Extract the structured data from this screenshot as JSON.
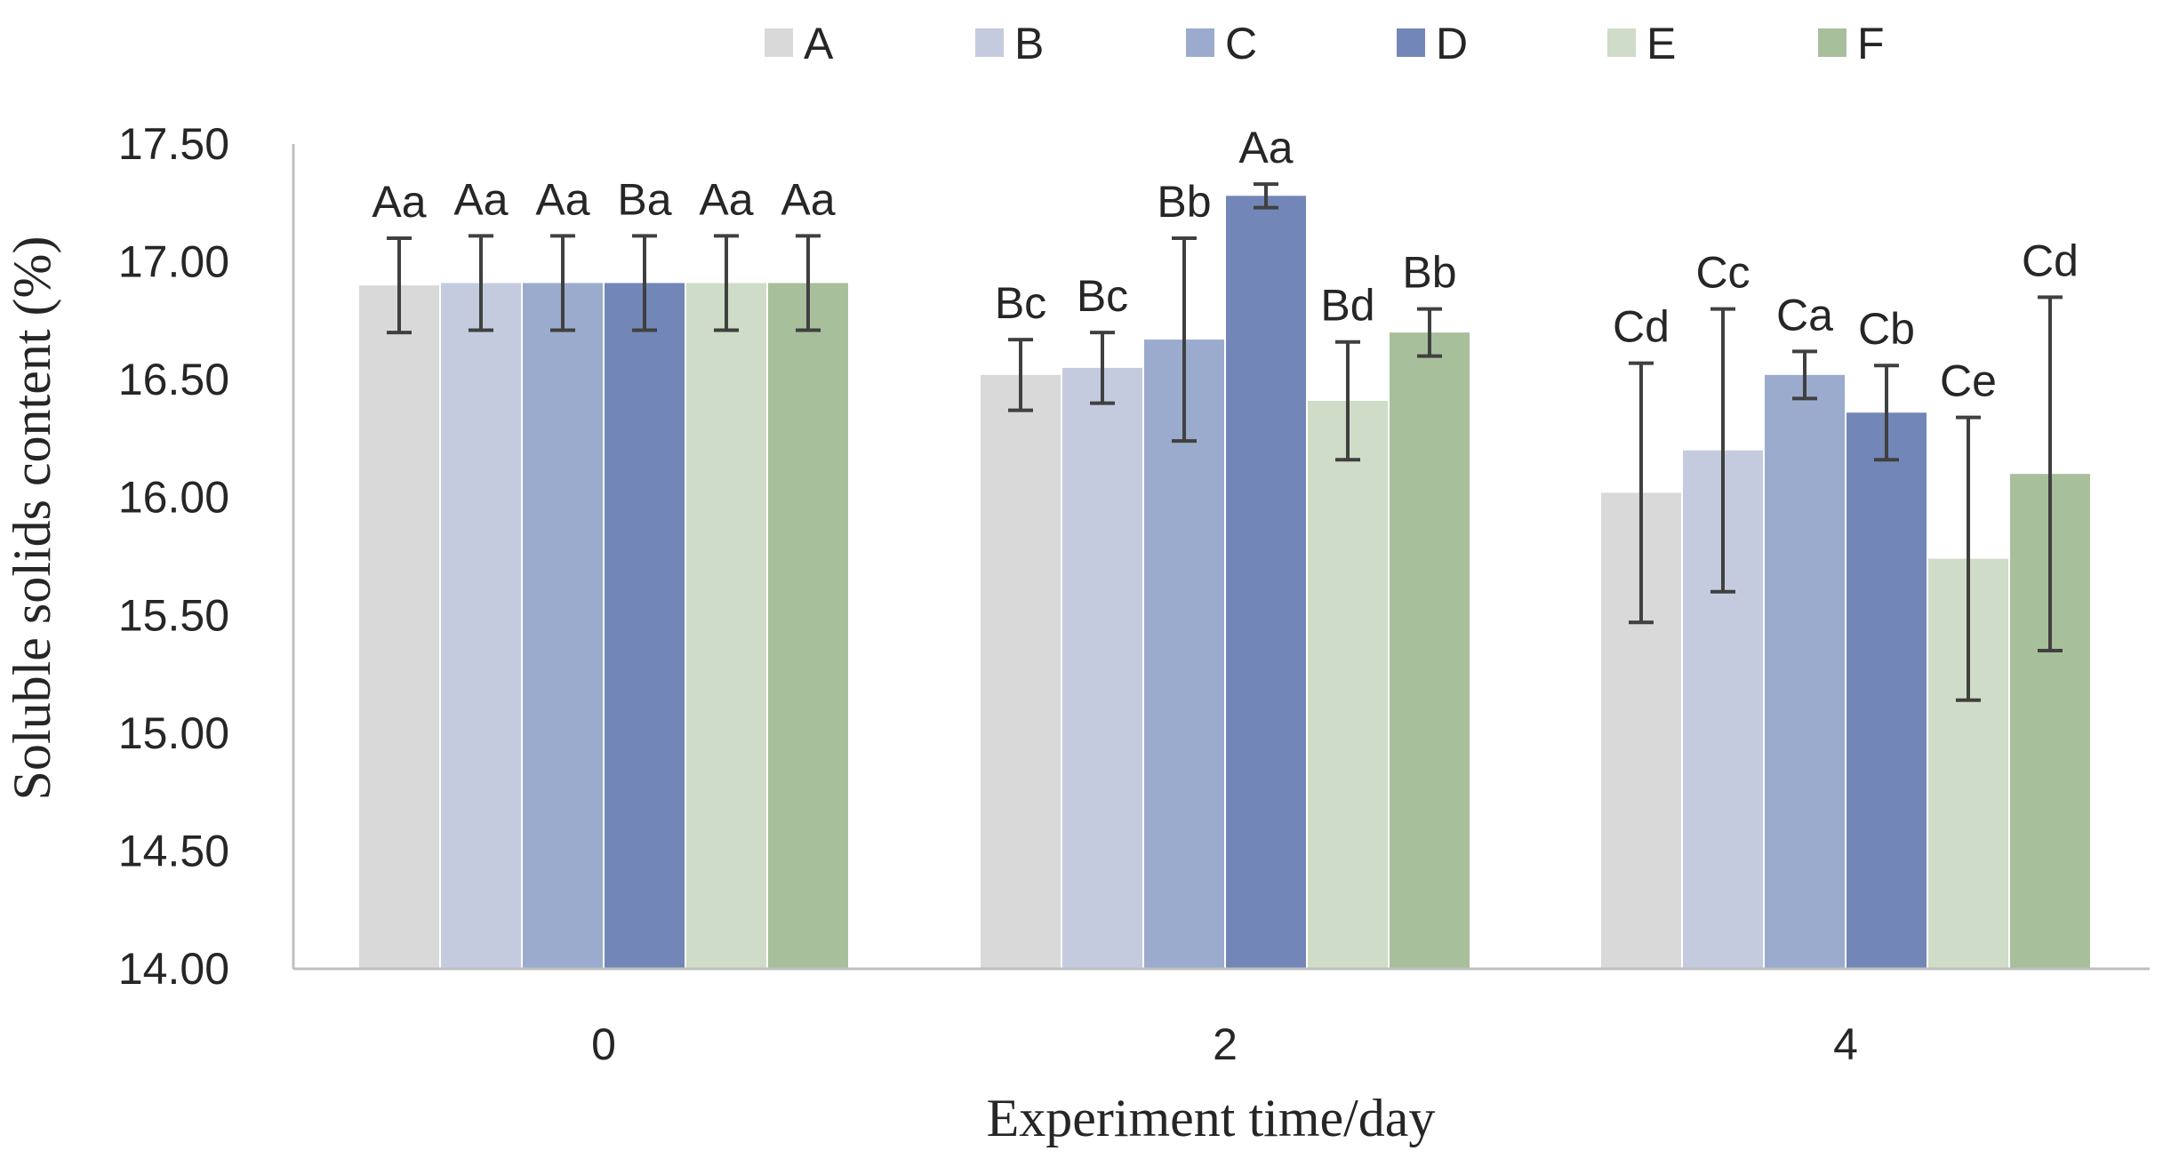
{
  "chart_data": {
    "type": "bar",
    "title": "",
    "xlabel": "Experiment time/day",
    "ylabel": "Soluble solids content (%)",
    "ylim": [
      14.0,
      17.5
    ],
    "yticks": [
      "14.00",
      "14.50",
      "15.00",
      "15.50",
      "16.00",
      "16.50",
      "17.00",
      "17.50"
    ],
    "categories": [
      "0",
      "2",
      "4"
    ],
    "legend_position": "top",
    "grid": false,
    "series": [
      {
        "name": "A",
        "color": "#d9d9d9",
        "values": [
          16.9,
          16.52,
          16.02
        ],
        "errors": [
          0.2,
          0.15,
          0.55
        ],
        "labels": [
          "Aa",
          "Bc",
          "Cd"
        ]
      },
      {
        "name": "B",
        "color": "#c5cbdf",
        "values": [
          16.91,
          16.55,
          16.2
        ],
        "errors": [
          0.2,
          0.15,
          0.6
        ],
        "labels": [
          "Aa",
          "Bc",
          "Cc"
        ]
      },
      {
        "name": "C",
        "color": "#9babcd",
        "values": [
          16.91,
          16.67,
          16.52
        ],
        "errors": [
          0.2,
          0.43,
          0.1
        ],
        "labels": [
          "Aa",
          "Bb",
          "Ca"
        ]
      },
      {
        "name": "D",
        "color": "#7287b8",
        "values": [
          16.91,
          17.28,
          16.36
        ],
        "errors": [
          0.2,
          0.05,
          0.2
        ],
        "labels": [
          "Ba",
          "Aa",
          "Cb"
        ]
      },
      {
        "name": "E",
        "color": "#cfdcc7",
        "values": [
          16.91,
          16.41,
          15.74
        ],
        "errors": [
          0.2,
          0.25,
          0.6
        ],
        "labels": [
          "Aa",
          "Bd",
          "Ce"
        ]
      },
      {
        "name": "F",
        "color": "#a8bf9c",
        "values": [
          16.91,
          16.7,
          16.1
        ],
        "errors": [
          0.2,
          0.1,
          0.75
        ],
        "labels": [
          "Aa",
          "Bb",
          "Cd"
        ]
      }
    ]
  }
}
